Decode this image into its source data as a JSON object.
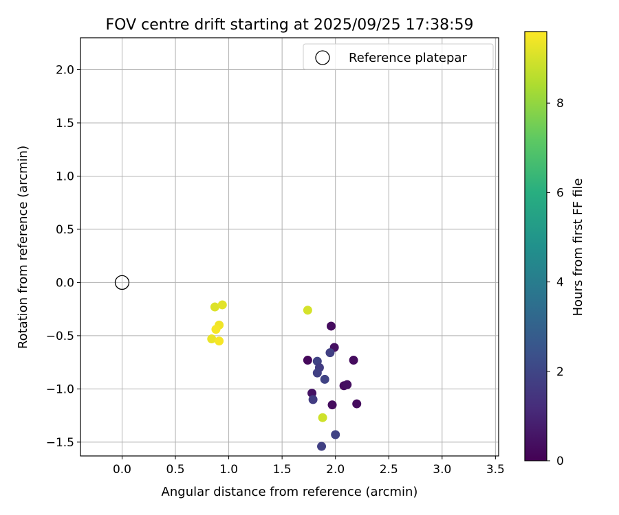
{
  "chart_data": {
    "type": "scatter",
    "title": "FOV centre drift starting at 2025/09/25 17:38:59",
    "xlabel": "Angular distance from reference (arcmin)",
    "ylabel": "Rotation from reference (arcmin)",
    "xlim": [
      -0.39,
      3.53
    ],
    "ylim": [
      -1.63,
      2.3
    ],
    "xticks": [
      "0.0",
      "0.5",
      "1.0",
      "1.5",
      "2.0",
      "2.5",
      "3.0",
      "3.5"
    ],
    "yticks": [
      "−1.5",
      "−1.0",
      "−0.5",
      "0.0",
      "0.5",
      "1.0",
      "1.5",
      "2.0"
    ],
    "grid": true,
    "legend": {
      "position": "top-right",
      "entries": [
        "Reference platepar"
      ]
    },
    "reference_point": {
      "x": 0.0,
      "y": 0.0
    },
    "colorbar": {
      "label": "Hours from first FF file",
      "range": [
        0,
        9.6
      ],
      "ticks": [
        "0",
        "2",
        "4",
        "6",
        "8"
      ],
      "colormap": "viridis"
    },
    "points": [
      {
        "x": 1.96,
        "y": -0.41,
        "hours": 0.3
      },
      {
        "x": 1.99,
        "y": -0.61,
        "hours": 0.4
      },
      {
        "x": 1.74,
        "y": -0.73,
        "hours": 0.2
      },
      {
        "x": 2.17,
        "y": -0.73,
        "hours": 0.3
      },
      {
        "x": 2.08,
        "y": -0.97,
        "hours": 0.3
      },
      {
        "x": 2.11,
        "y": -0.96,
        "hours": 0.4
      },
      {
        "x": 1.78,
        "y": -1.04,
        "hours": 0.5
      },
      {
        "x": 1.97,
        "y": -1.15,
        "hours": 0.3
      },
      {
        "x": 2.2,
        "y": -1.14,
        "hours": 0.3
      },
      {
        "x": 1.95,
        "y": -0.66,
        "hours": 1.8
      },
      {
        "x": 1.83,
        "y": -0.74,
        "hours": 1.9
      },
      {
        "x": 1.85,
        "y": -0.8,
        "hours": 1.7
      },
      {
        "x": 1.83,
        "y": -0.85,
        "hours": 1.8
      },
      {
        "x": 1.9,
        "y": -0.91,
        "hours": 1.9
      },
      {
        "x": 1.79,
        "y": -1.1,
        "hours": 1.7
      },
      {
        "x": 2.0,
        "y": -1.43,
        "hours": 1.9
      },
      {
        "x": 1.87,
        "y": -1.54,
        "hours": 1.8
      },
      {
        "x": 1.88,
        "y": -1.27,
        "hours": 8.9
      },
      {
        "x": 1.74,
        "y": -0.26,
        "hours": 9.0
      },
      {
        "x": 0.87,
        "y": -0.23,
        "hours": 9.1
      },
      {
        "x": 0.94,
        "y": -0.21,
        "hours": 9.2
      },
      {
        "x": 0.91,
        "y": -0.4,
        "hours": 9.4
      },
      {
        "x": 0.88,
        "y": -0.44,
        "hours": 9.5
      },
      {
        "x": 0.84,
        "y": -0.53,
        "hours": 9.3
      },
      {
        "x": 0.91,
        "y": -0.55,
        "hours": 9.5
      }
    ]
  }
}
